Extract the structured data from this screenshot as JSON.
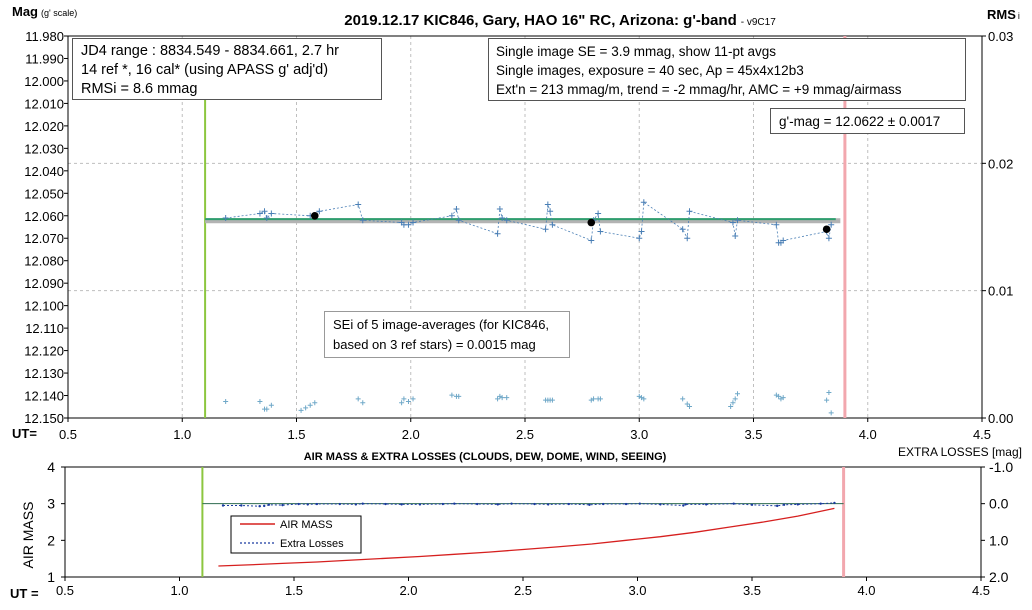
{
  "colors": {
    "data_points": "#4a7fb5",
    "fit_line": "#2e9e6e",
    "mean_band": "#b3b3b3",
    "start_line": "#8cc63f",
    "end_line": "#f2a7ae",
    "airmass": "#d6201f",
    "extra_losses": "#1a3aa0",
    "grid": "#bfbfbf"
  },
  "chart_data": [
    {
      "type": "scatter",
      "title": "2019.12.17 KIC846, Gary, HAO 16\" RC, Arizona: g'-band",
      "title_suffix": "- v9C17",
      "ylabel": "Mag",
      "ylabel_suffix": "(g' scale)",
      "y2label": "RMS",
      "y2label_suffix": "i",
      "xlabel_prefix": "UT=",
      "xlim": [
        0.5,
        4.5
      ],
      "ylim": [
        11.98,
        12.15
      ],
      "y_inverted": true,
      "y2lim": [
        0.0,
        0.03
      ],
      "xticks": [
        "0.5",
        "1.0",
        "1.5",
        "2.0",
        "2.5",
        "3.0",
        "3.5",
        "4.0",
        "4.5"
      ],
      "yticks": [
        "11.980",
        "11.990",
        "12.000",
        "12.010",
        "12.020",
        "12.030",
        "12.040",
        "12.050",
        "12.060",
        "12.070",
        "12.080",
        "12.090",
        "12.100",
        "12.110",
        "12.120",
        "12.130",
        "12.140",
        "12.150"
      ],
      "y2ticks": [
        "0.00",
        "0.01",
        "0.02",
        "0.03"
      ],
      "start_ut": 1.1,
      "end_ut": 3.9,
      "mean_mag": 12.0622,
      "fit_line": {
        "x": [
          1.1,
          3.86
        ],
        "y": [
          12.0615,
          12.0615
        ]
      },
      "series": [
        {
          "name": "Single images",
          "x": [
            1.19,
            1.34,
            1.36,
            1.37,
            1.39,
            1.56,
            1.6,
            1.77,
            1.79,
            1.96,
            1.97,
            1.99,
            2.01,
            2.18,
            2.2,
            2.21,
            2.38,
            2.39,
            2.4,
            2.42,
            2.59,
            2.6,
            2.61,
            2.62,
            2.79,
            2.8,
            2.82,
            2.83,
            3.0,
            3.01,
            3.02,
            3.19,
            3.21,
            3.22,
            3.41,
            3.42,
            3.43,
            3.6,
            3.61,
            3.62,
            3.63,
            3.82,
            3.83,
            3.84
          ],
          "y": [
            12.061,
            12.059,
            12.058,
            12.061,
            12.059,
            12.06,
            12.058,
            12.055,
            12.062,
            12.063,
            12.064,
            12.064,
            12.063,
            12.06,
            12.057,
            12.062,
            12.068,
            12.057,
            12.061,
            12.062,
            12.066,
            12.055,
            12.058,
            12.064,
            12.071,
            12.062,
            12.059,
            12.067,
            12.07,
            12.067,
            12.054,
            12.066,
            12.07,
            12.058,
            12.063,
            12.069,
            12.062,
            12.064,
            12.072,
            12.072,
            12.071,
            12.067,
            12.07,
            12.064
          ]
        },
        {
          "name": "11-pt avgs",
          "x": [
            1.58,
            2.79,
            3.82
          ],
          "y": [
            12.06,
            12.063,
            12.066
          ]
        },
        {
          "name": "RMSi",
          "x": [
            1.19,
            1.34,
            1.36,
            1.37,
            1.39,
            1.52,
            1.54,
            1.56,
            1.58,
            1.77,
            1.79,
            1.96,
            1.97,
            1.99,
            2.01,
            2.18,
            2.2,
            2.21,
            2.38,
            2.39,
            2.4,
            2.42,
            2.59,
            2.6,
            2.61,
            2.62,
            2.79,
            2.8,
            2.82,
            2.83,
            3.0,
            3.01,
            3.02,
            3.19,
            3.21,
            3.22,
            3.4,
            3.41,
            3.42,
            3.43,
            3.6,
            3.61,
            3.62,
            3.63,
            3.82,
            3.83,
            3.84
          ],
          "y": [
            0.0013,
            0.0013,
            0.0007,
            0.0007,
            0.001,
            0.0006,
            0.0008,
            0.001,
            0.0012,
            0.0015,
            0.0012,
            0.0012,
            0.0015,
            0.0013,
            0.0015,
            0.0018,
            0.0017,
            0.0017,
            0.0015,
            0.0017,
            0.0016,
            0.0016,
            0.0014,
            0.0014,
            0.0014,
            0.0014,
            0.0014,
            0.0015,
            0.0015,
            0.0015,
            0.0017,
            0.0016,
            0.0015,
            0.0015,
            0.0011,
            0.0009,
            0.0009,
            0.0012,
            0.0015,
            0.0019,
            0.0018,
            0.0017,
            0.0015,
            0.0016,
            0.0014,
            0.002,
            0.0004
          ]
        }
      ],
      "annotations": {
        "box_left": [
          "JD4 range : 8834.549 - 8834.661,  2.7  hr",
          "14 ref *, 16 cal* (using APASS g' adj'd)",
          "RMSi = 8.6 mmag"
        ],
        "box_right": [
          "Single image SE = 3.9 mmag, show  11-pt avgs",
          "Single images, exposure = 40 sec, Ap = 45x4x12b3",
          "Ext'n = 213 mmag/m, trend =  -2 mmag/hr, AMC = +9 mmag/airmass"
        ],
        "box_gmag": "g'-mag = 12.0622 ± 0.0017",
        "box_sei": [
          "SEi of 5 image-averages (for KIC846,",
          "based on 3 ref stars) = 0.0015 mag"
        ]
      }
    },
    {
      "type": "line",
      "title": "AIR MASS & EXTRA LOSSES (CLOUDS, DEW, DOME, WIND, SEEING)",
      "ylabel": "AIR MASS",
      "y2label": "EXTRA LOSSES [mag]",
      "xlabel_prefix": "UT =",
      "xlim": [
        0.5,
        4.5
      ],
      "ylim": [
        1,
        4
      ],
      "y2lim": [
        -1.0,
        2.0
      ],
      "y2_inverted": true,
      "xticks": [
        "0.5",
        "1.0",
        "1.5",
        "2.0",
        "2.5",
        "3.0",
        "3.5",
        "4.0",
        "4.5"
      ],
      "yticks": [
        "1",
        "2",
        "3",
        "4"
      ],
      "y2ticks": [
        "-1.0",
        "0.0",
        "1.0",
        "2.0"
      ],
      "start_ut": 1.1,
      "end_ut": 3.9,
      "legend": [
        "AIR MASS",
        "Extra Losses"
      ],
      "series": [
        {
          "name": "AIR MASS",
          "x": [
            1.17,
            1.3,
            1.45,
            1.6,
            1.75,
            1.9,
            2.05,
            2.2,
            2.35,
            2.5,
            2.65,
            2.8,
            2.95,
            3.1,
            3.25,
            3.4,
            3.55,
            3.7,
            3.86
          ],
          "y": [
            1.3,
            1.33,
            1.37,
            1.41,
            1.46,
            1.51,
            1.56,
            1.62,
            1.68,
            1.75,
            1.82,
            1.9,
            2.0,
            2.1,
            2.22,
            2.36,
            2.5,
            2.66,
            2.87
          ]
        },
        {
          "name": "Extra Losses",
          "x": [
            1.19,
            1.27,
            1.35,
            1.37,
            1.39,
            1.45,
            1.52,
            1.56,
            1.6,
            1.7,
            1.77,
            1.8,
            1.9,
            1.97,
            2.05,
            2.15,
            2.2,
            2.3,
            2.39,
            2.45,
            2.55,
            2.61,
            2.7,
            2.79,
            2.85,
            2.95,
            3.01,
            3.1,
            3.2,
            3.21,
            3.3,
            3.42,
            3.5,
            3.61,
            3.64,
            3.7,
            3.8,
            3.86
          ],
          "y": [
            0.05,
            0.05,
            0.07,
            0.06,
            0.03,
            0.04,
            0.01,
            0.02,
            0.01,
            0.01,
            0.02,
            0.0,
            0.01,
            0.02,
            0.02,
            0.01,
            0.0,
            0.01,
            0.02,
            0.0,
            0.01,
            0.02,
            0.01,
            0.03,
            0.01,
            0.01,
            0.0,
            0.02,
            0.05,
            0.02,
            0.02,
            0.0,
            0.03,
            0.06,
            0.03,
            0.02,
            0.0,
            -0.02
          ]
        },
        {
          "name": "Zero reference",
          "x": [
            1.1,
            3.9
          ],
          "y": [
            0.0,
            0.0
          ]
        }
      ]
    }
  ]
}
